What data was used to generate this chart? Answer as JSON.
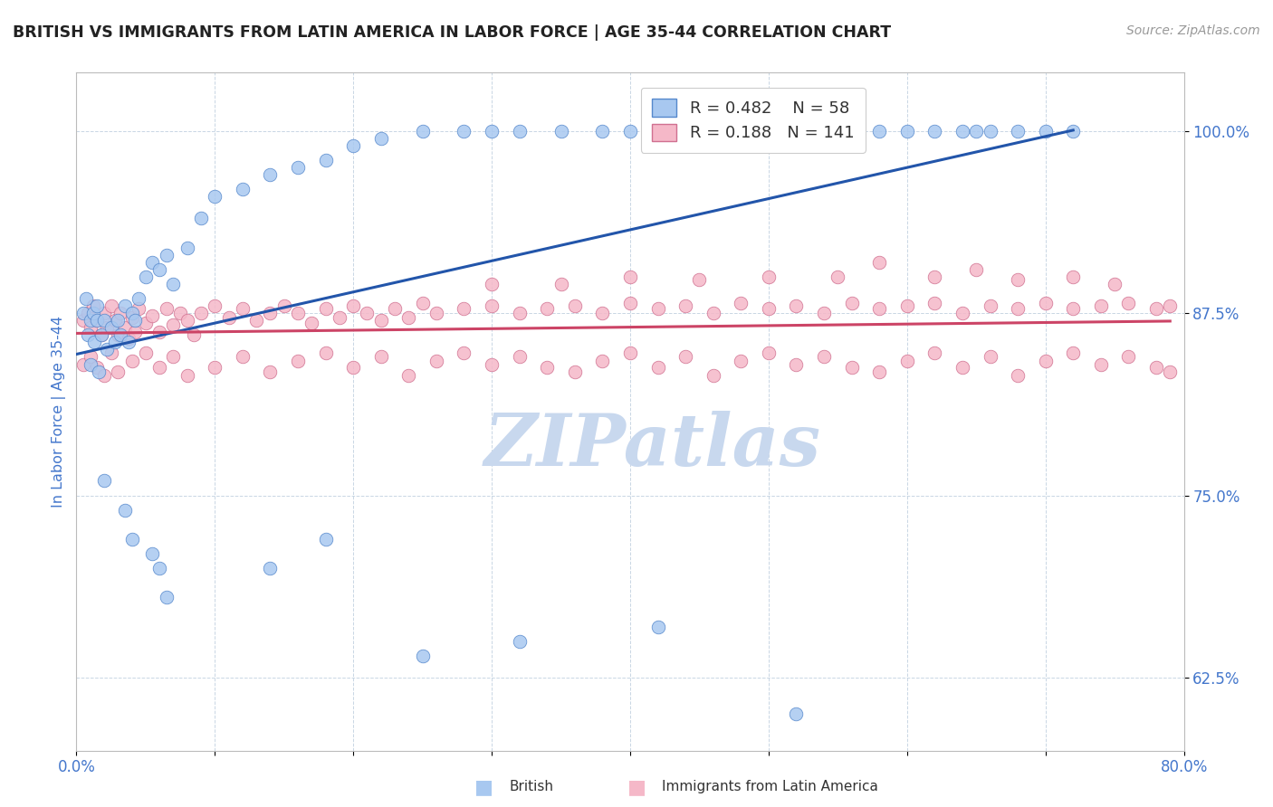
{
  "title": "BRITISH VS IMMIGRANTS FROM LATIN AMERICA IN LABOR FORCE | AGE 35-44 CORRELATION CHART",
  "source": "Source: ZipAtlas.com",
  "ylabel": "In Labor Force | Age 35-44",
  "xlim": [
    0.0,
    0.8
  ],
  "ylim": [
    0.575,
    1.04
  ],
  "yticks": [
    0.625,
    0.75,
    0.875,
    1.0
  ],
  "yticklabels": [
    "62.5%",
    "75.0%",
    "87.5%",
    "100.0%"
  ],
  "blue_color": "#A8C8F0",
  "blue_edge_color": "#5588CC",
  "pink_color": "#F5B8C8",
  "pink_edge_color": "#D07090",
  "blue_line_color": "#2255AA",
  "pink_line_color": "#CC4466",
  "tick_color": "#4477CC",
  "title_color": "#222222",
  "axis_label_color": "#4477CC",
  "legend_text_color": "#222222",
  "legend_R_color": "#4477CC",
  "watermark_color": "#C8D8EE",
  "blue_x": [
    0.005,
    0.007,
    0.008,
    0.01,
    0.01,
    0.012,
    0.013,
    0.015,
    0.015,
    0.016,
    0.018,
    0.02,
    0.022,
    0.025,
    0.028,
    0.03,
    0.032,
    0.035,
    0.038,
    0.04,
    0.042,
    0.045,
    0.05,
    0.055,
    0.06,
    0.065,
    0.07,
    0.08,
    0.09,
    0.1,
    0.12,
    0.14,
    0.16,
    0.18,
    0.2,
    0.22,
    0.25,
    0.28,
    0.3,
    0.32,
    0.35,
    0.38,
    0.4,
    0.42,
    0.45,
    0.48,
    0.5,
    0.52,
    0.55,
    0.58,
    0.6,
    0.62,
    0.64,
    0.65,
    0.66,
    0.68,
    0.7,
    0.72
  ],
  "blue_y": [
    0.875,
    0.885,
    0.86,
    0.87,
    0.84,
    0.875,
    0.855,
    0.87,
    0.88,
    0.835,
    0.86,
    0.87,
    0.85,
    0.865,
    0.855,
    0.87,
    0.86,
    0.88,
    0.855,
    0.875,
    0.87,
    0.885,
    0.9,
    0.91,
    0.905,
    0.915,
    0.895,
    0.92,
    0.94,
    0.955,
    0.96,
    0.97,
    0.975,
    0.98,
    0.99,
    0.995,
    1.0,
    1.0,
    1.0,
    1.0,
    1.0,
    1.0,
    1.0,
    1.0,
    1.0,
    1.0,
    1.0,
    1.0,
    1.0,
    1.0,
    1.0,
    1.0,
    1.0,
    1.0,
    1.0,
    1.0,
    1.0,
    1.0
  ],
  "blue_outlier_x": [
    0.02,
    0.035,
    0.04,
    0.055,
    0.06,
    0.065,
    0.14,
    0.18,
    0.25,
    0.32,
    0.42,
    0.52
  ],
  "blue_outlier_y": [
    0.76,
    0.74,
    0.72,
    0.71,
    0.7,
    0.68,
    0.7,
    0.72,
    0.64,
    0.65,
    0.66,
    0.6
  ],
  "pink_x": [
    0.005,
    0.008,
    0.01,
    0.012,
    0.015,
    0.018,
    0.02,
    0.022,
    0.025,
    0.028,
    0.03,
    0.032,
    0.035,
    0.038,
    0.04,
    0.042,
    0.045,
    0.05,
    0.055,
    0.06,
    0.065,
    0.07,
    0.075,
    0.08,
    0.085,
    0.09,
    0.1,
    0.11,
    0.12,
    0.13,
    0.14,
    0.15,
    0.16,
    0.17,
    0.18,
    0.19,
    0.2,
    0.21,
    0.22,
    0.23,
    0.24,
    0.25,
    0.26,
    0.28,
    0.3,
    0.32,
    0.34,
    0.36,
    0.38,
    0.4,
    0.42,
    0.44,
    0.46,
    0.48,
    0.5,
    0.52,
    0.54,
    0.56,
    0.58,
    0.6,
    0.62,
    0.64,
    0.66,
    0.68,
    0.7,
    0.72,
    0.74,
    0.76,
    0.78,
    0.79,
    0.005,
    0.01,
    0.015,
    0.02,
    0.025,
    0.03,
    0.04,
    0.05,
    0.06,
    0.07,
    0.08,
    0.1,
    0.12,
    0.14,
    0.16,
    0.18,
    0.2,
    0.22,
    0.24,
    0.26,
    0.28,
    0.3,
    0.32,
    0.34,
    0.36,
    0.38,
    0.4,
    0.42,
    0.44,
    0.46,
    0.48,
    0.5,
    0.52,
    0.54,
    0.56,
    0.58,
    0.6,
    0.62,
    0.64,
    0.66,
    0.68,
    0.7,
    0.72,
    0.74,
    0.76,
    0.78,
    0.79,
    0.4,
    0.58,
    0.65,
    0.72,
    0.35,
    0.5,
    0.62,
    0.3,
    0.45,
    0.55,
    0.68,
    0.75
  ],
  "pink_y": [
    0.87,
    0.875,
    0.865,
    0.88,
    0.87,
    0.86,
    0.875,
    0.865,
    0.88,
    0.87,
    0.86,
    0.875,
    0.865,
    0.858,
    0.872,
    0.862,
    0.878,
    0.868,
    0.873,
    0.862,
    0.878,
    0.867,
    0.875,
    0.87,
    0.86,
    0.875,
    0.88,
    0.872,
    0.878,
    0.87,
    0.875,
    0.88,
    0.875,
    0.868,
    0.878,
    0.872,
    0.88,
    0.875,
    0.87,
    0.878,
    0.872,
    0.882,
    0.875,
    0.878,
    0.88,
    0.875,
    0.878,
    0.88,
    0.875,
    0.882,
    0.878,
    0.88,
    0.875,
    0.882,
    0.878,
    0.88,
    0.875,
    0.882,
    0.878,
    0.88,
    0.882,
    0.875,
    0.88,
    0.878,
    0.882,
    0.878,
    0.88,
    0.882,
    0.878,
    0.88,
    0.84,
    0.845,
    0.838,
    0.832,
    0.848,
    0.835,
    0.842,
    0.848,
    0.838,
    0.845,
    0.832,
    0.838,
    0.845,
    0.835,
    0.842,
    0.848,
    0.838,
    0.845,
    0.832,
    0.842,
    0.848,
    0.84,
    0.845,
    0.838,
    0.835,
    0.842,
    0.848,
    0.838,
    0.845,
    0.832,
    0.842,
    0.848,
    0.84,
    0.845,
    0.838,
    0.835,
    0.842,
    0.848,
    0.838,
    0.845,
    0.832,
    0.842,
    0.848,
    0.84,
    0.845,
    0.838,
    0.835,
    0.9,
    0.91,
    0.905,
    0.9,
    0.895,
    0.9,
    0.9,
    0.895,
    0.898,
    0.9,
    0.898,
    0.895
  ]
}
